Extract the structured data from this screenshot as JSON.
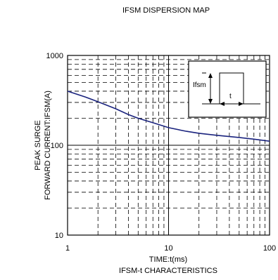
{
  "chart_data": {
    "type": "line",
    "title": "IFSM DISPERSION MAP",
    "xlabel": "TIME:t(ms)",
    "subtitle_below": "IFSM-t CHARACTERISTICS",
    "ylabel_line1": "PEAK SURGE",
    "ylabel_line2": "FORWARD CURRENT:IFSM(A)",
    "x_scale": "log",
    "y_scale": "log",
    "xlim": [
      1,
      100
    ],
    "ylim": [
      10,
      1000
    ],
    "x_ticks": [
      {
        "value": 1,
        "label": "1"
      },
      {
        "value": 10,
        "label": "10"
      },
      {
        "value": 100,
        "label": "100"
      }
    ],
    "y_ticks": [
      {
        "value": 10,
        "label": "10"
      },
      {
        "value": 100,
        "label": "100"
      },
      {
        "value": 1000,
        "label": "1000"
      }
    ],
    "grid": true,
    "line_color": "#1a237e",
    "series": [
      {
        "x": [
          1,
          1.5,
          2,
          3,
          4,
          5,
          7,
          10,
          15,
          20,
          30,
          50,
          70,
          100
        ],
        "y": [
          400,
          345,
          305,
          255,
          220,
          200,
          178,
          157,
          143,
          136,
          129,
          122,
          117,
          111
        ]
      }
    ],
    "inset": {
      "label_current": "Ifsm",
      "label_time": "t"
    }
  }
}
